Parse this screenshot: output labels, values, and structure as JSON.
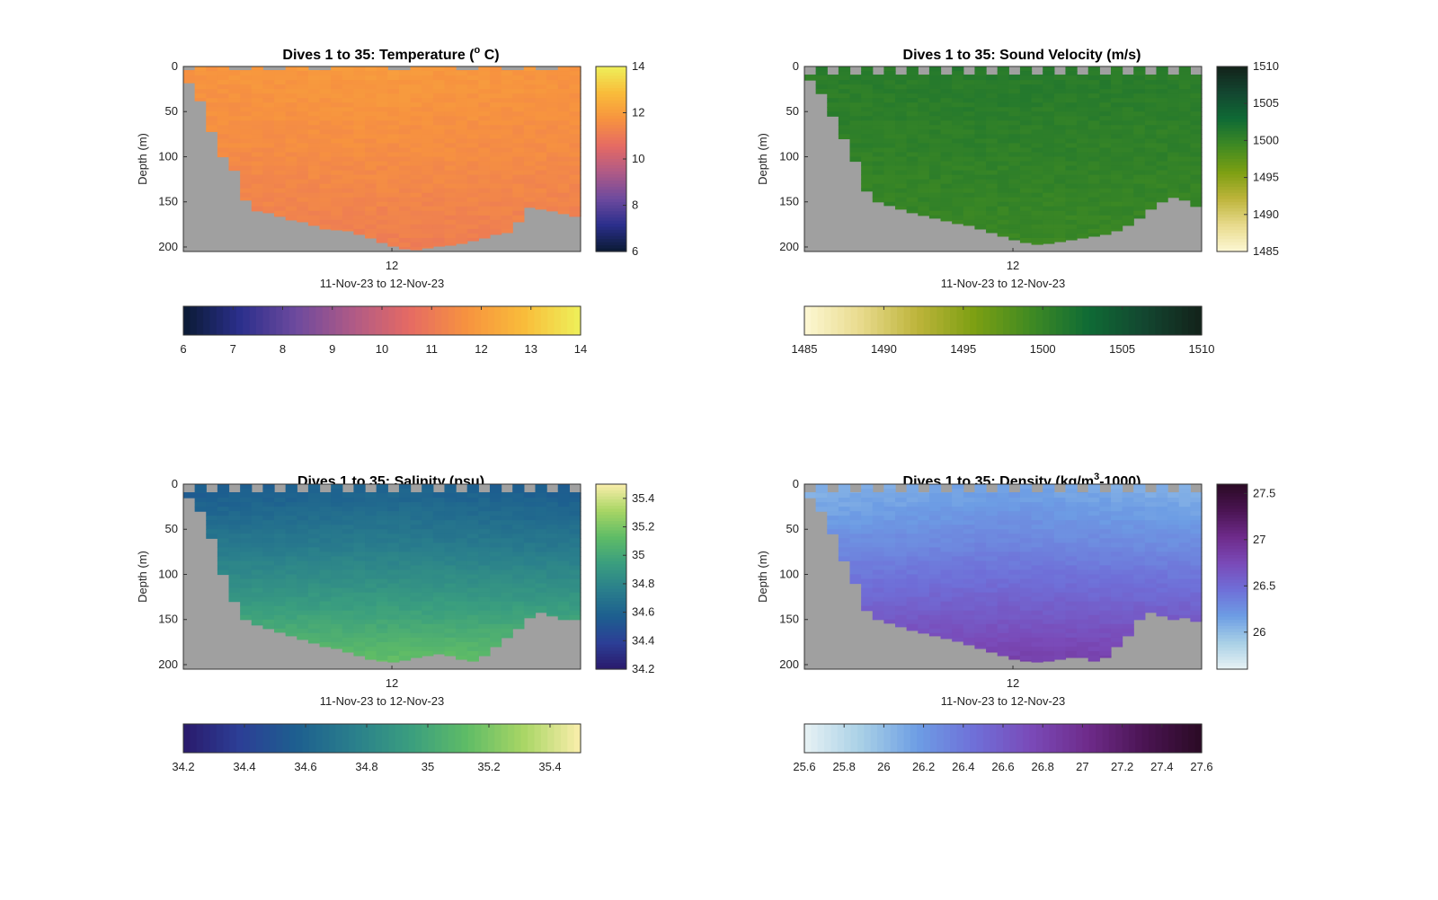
{
  "chart_data": [
    {
      "type": "heatmap",
      "id": "temp",
      "title": "Dives 1 to 35: Temperature (° C)",
      "title_parts": {
        "pre": "Dives 1 to 35: Temperature (",
        "sup": "o",
        "post": " C)"
      },
      "ylabel": "Depth (m)",
      "xlabel": "11-Nov-23 to 12-Nov-23",
      "x_ticks": [
        "12"
      ],
      "y_ticks": [
        "0",
        "50",
        "100",
        "150",
        "200"
      ],
      "ylim": [
        0,
        205
      ],
      "y_reversed": true,
      "dives": 35,
      "cbar_v_ticks": [
        "14",
        "12",
        "10",
        "8",
        "6"
      ],
      "cbar_h_ticks": [
        "6",
        "7",
        "8",
        "9",
        "10",
        "11",
        "12",
        "13",
        "14"
      ],
      "cbar_range": [
        6,
        14
      ],
      "colormap": [
        "#0a1a33",
        "#2b2f8c",
        "#6e4a9e",
        "#b05a86",
        "#e66b63",
        "#f7933f",
        "#f9bc3a",
        "#eef05a"
      ],
      "bottom_depth": [
        18,
        38,
        72,
        100,
        115,
        148,
        160,
        162,
        166,
        170,
        172,
        176,
        180,
        181,
        182,
        186,
        190,
        195,
        199,
        202,
        203,
        201,
        199,
        198,
        196,
        193,
        190,
        186,
        184,
        172,
        156,
        158,
        160,
        163,
        166
      ],
      "surface_gap_dives": [
        0,
        4,
        5,
        7,
        8,
        11,
        12,
        18,
        19,
        24,
        25,
        28,
        29,
        31,
        32
      ],
      "surface_gap_depth": 4,
      "fit": {
        "surface": 11.75,
        "deep": 11.1,
        "center_boost": 0.15
      }
    },
    {
      "type": "heatmap",
      "id": "sv",
      "title": "Dives 1 to 35: Sound Velocity (m/s)",
      "ylabel": "Depth (m)",
      "xlabel": "11-Nov-23 to 12-Nov-23",
      "x_ticks": [
        "12"
      ],
      "y_ticks": [
        "0",
        "50",
        "100",
        "150",
        "200"
      ],
      "ylim": [
        0,
        205
      ],
      "y_reversed": true,
      "dives": 35,
      "cbar_v_ticks": [
        "1510",
        "1505",
        "1500",
        "1495",
        "1490",
        "1485"
      ],
      "cbar_h_ticks": [
        "1485",
        "1490",
        "1495",
        "1500",
        "1505",
        "1510"
      ],
      "cbar_range": [
        1485,
        1510
      ],
      "colormap": [
        "#fdf8d4",
        "#e8da8c",
        "#bdb43a",
        "#7c9f12",
        "#3f8a23",
        "#0f6b35",
        "#134630",
        "#13221a"
      ],
      "bottom_depth": [
        15,
        30,
        55,
        80,
        105,
        138,
        150,
        154,
        158,
        162,
        165,
        168,
        171,
        174,
        176,
        180,
        184,
        188,
        192,
        195,
        197,
        196,
        194,
        192,
        190,
        188,
        186,
        182,
        176,
        168,
        158,
        150,
        145,
        148,
        155
      ],
      "surface_gap_dives": [
        0,
        2,
        4,
        6,
        8,
        10,
        12,
        14,
        16,
        18,
        20,
        22,
        24,
        26,
        28,
        30,
        32,
        34
      ],
      "surface_gap_depth": 9,
      "fit": {
        "surface": 1500.8,
        "deep": 1499.6,
        "center_boost": 0.3
      }
    },
    {
      "type": "heatmap",
      "id": "sal",
      "title": "Dives 1 to 35: Salinity (psu)",
      "ylabel": "Depth (m)",
      "xlabel": "11-Nov-23 to 12-Nov-23",
      "x_ticks": [
        "12"
      ],
      "y_ticks": [
        "0",
        "50",
        "100",
        "150",
        "200"
      ],
      "ylim": [
        0,
        205
      ],
      "y_reversed": true,
      "dives": 35,
      "cbar_v_ticks": [
        "35.4",
        "35.2",
        "35",
        "34.8",
        "34.6",
        "34.4",
        "34.2"
      ],
      "cbar_h_ticks": [
        "34.2",
        "34.4",
        "34.6",
        "34.8",
        "35",
        "35.2",
        "35.4"
      ],
      "cbar_range": [
        34.2,
        35.5
      ],
      "colormap": [
        "#2a1a6b",
        "#2c3f96",
        "#1d5f8f",
        "#2a7f8c",
        "#3a9e7f",
        "#5fbc66",
        "#a9d665",
        "#fbeeac"
      ],
      "bottom_depth": [
        15,
        30,
        60,
        100,
        130,
        150,
        156,
        160,
        164,
        168,
        172,
        176,
        180,
        182,
        186,
        190,
        194,
        196,
        197,
        195,
        192,
        190,
        188,
        190,
        194,
        196,
        190,
        180,
        170,
        160,
        148,
        142,
        146,
        150,
        150
      ],
      "surface_gap_dives": [
        0,
        2,
        4,
        6,
        8,
        10,
        12,
        14,
        16,
        18,
        20,
        22,
        24,
        26,
        28,
        30,
        32,
        34
      ],
      "surface_gap_depth": 9,
      "fit": {
        "surface": 34.55,
        "deep": 35.15,
        "center_boost": 0.05
      }
    },
    {
      "type": "heatmap",
      "id": "dens",
      "title": "Dives 1 to 35: Density (kg/m³-1000)",
      "title_parts": {
        "pre": "Dives 1 to 35: Density (kg/m",
        "sup": "3",
        "post": "-1000)"
      },
      "ylabel": "Depth (m)",
      "xlabel": "11-Nov-23 to 12-Nov-23",
      "x_ticks": [
        "12"
      ],
      "y_ticks": [
        "0",
        "50",
        "100",
        "150",
        "200"
      ],
      "ylim": [
        0,
        205
      ],
      "y_reversed": true,
      "dives": 35,
      "cbar_v_ticks": [
        "27.5",
        "27",
        "26.5",
        "26"
      ],
      "cbar_h_ticks": [
        "25.6",
        "25.8",
        "26",
        "26.2",
        "26.4",
        "26.6",
        "26.8",
        "27",
        "27.2",
        "27.4",
        "27.6"
      ],
      "cbar_range": [
        25.6,
        27.6
      ],
      "colormap": [
        "#e8f2f4",
        "#a8d0e6",
        "#6d9de4",
        "#6f6fd8",
        "#7a4ab8",
        "#6e2b8a",
        "#4a1452",
        "#2a0a24"
      ],
      "bottom_depth": [
        15,
        30,
        55,
        85,
        110,
        140,
        150,
        154,
        158,
        162,
        165,
        168,
        171,
        174,
        178,
        182,
        186,
        190,
        194,
        196,
        197,
        196,
        194,
        192,
        192,
        196,
        192,
        180,
        168,
        150,
        142,
        146,
        150,
        148,
        152
      ],
      "surface_gap_dives": [
        0,
        2,
        4,
        6,
        8,
        10,
        12,
        14,
        16,
        18,
        20,
        22,
        24,
        26,
        28,
        30,
        32,
        34
      ],
      "surface_gap_depth": 9,
      "fit": {
        "surface": 26.05,
        "deep": 26.85,
        "center_boost": 0.1
      }
    }
  ]
}
